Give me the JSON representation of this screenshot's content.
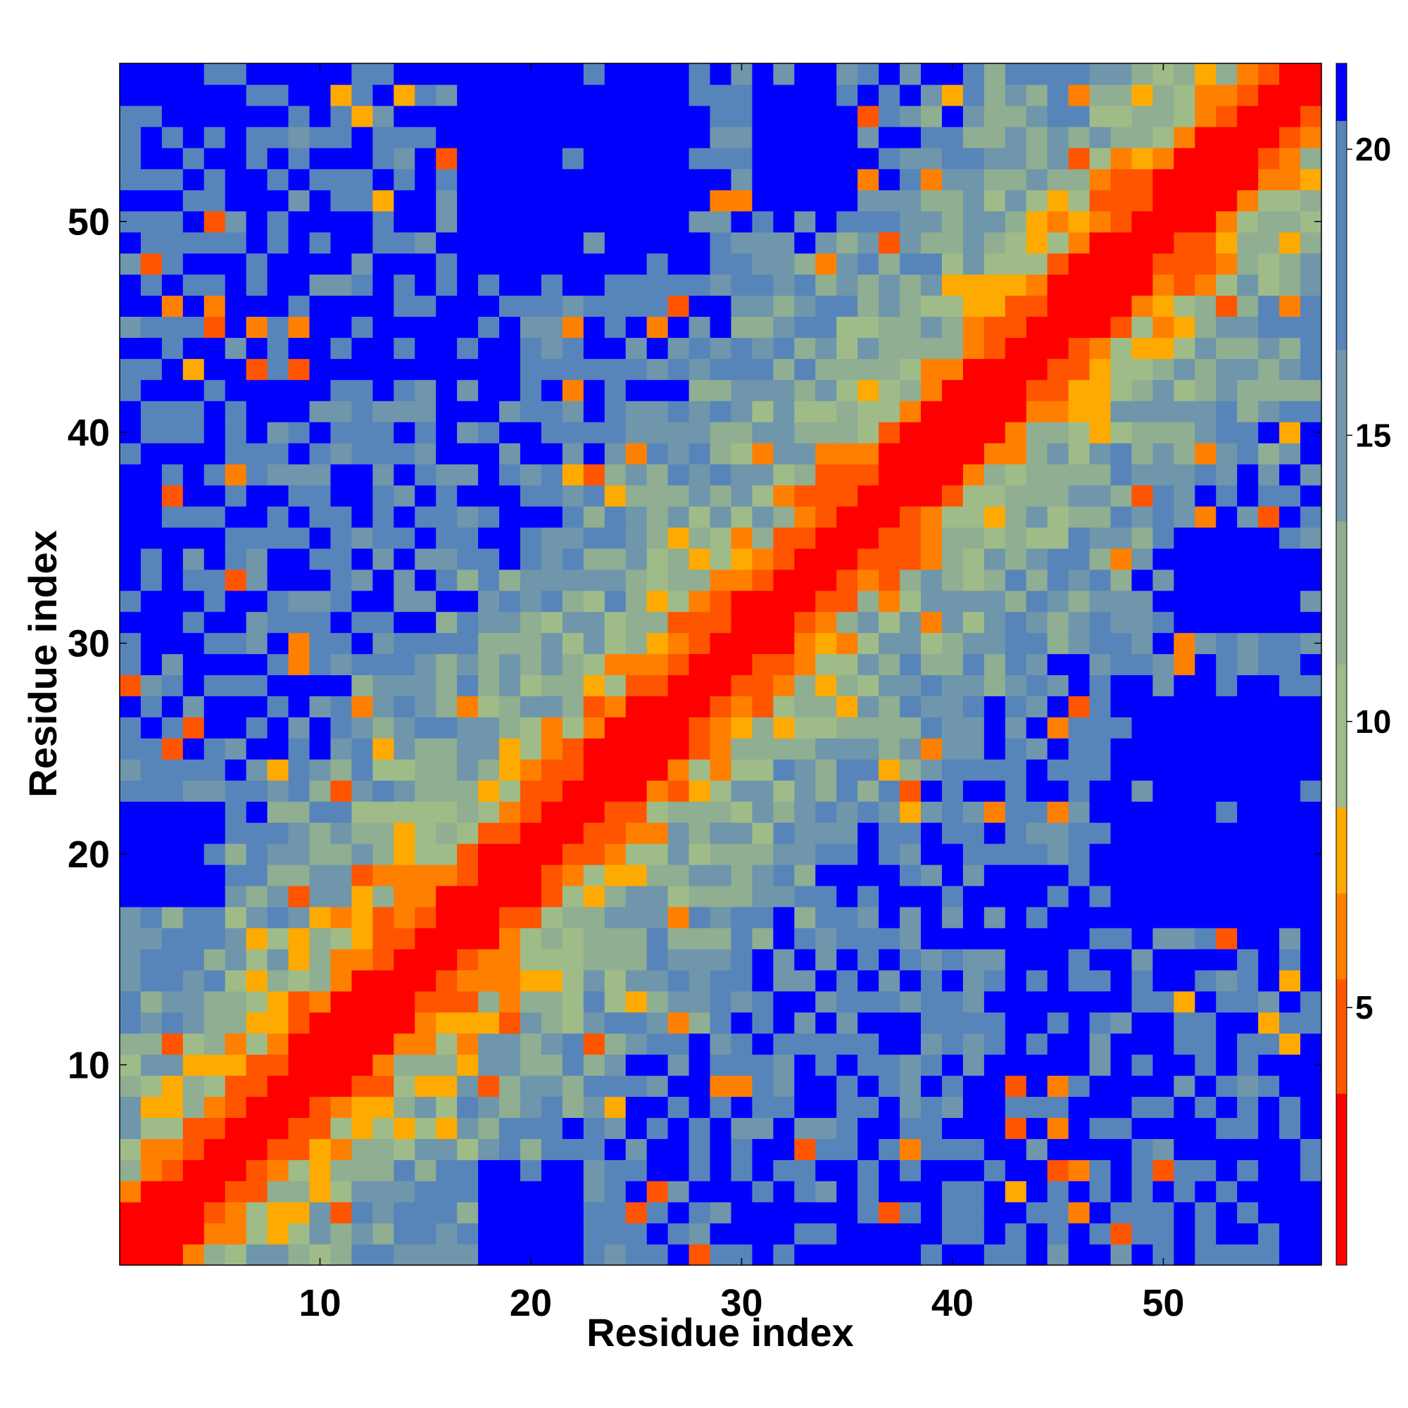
{
  "chart_data": {
    "type": "heatmap",
    "title": "",
    "xlabel": "Residue index",
    "ylabel": "Residue index",
    "n_residues": 57,
    "x_range": [
      0.5,
      57.5
    ],
    "y_range": [
      0.5,
      57.5
    ],
    "x_ticks": [
      10,
      20,
      30,
      40,
      50
    ],
    "y_ticks": [
      10,
      20,
      30,
      40,
      50
    ],
    "x_tick_labels": [
      "10",
      "20",
      "30",
      "40",
      "50"
    ],
    "y_tick_labels": [
      "10",
      "20",
      "30",
      "40",
      "50"
    ],
    "colorbar": {
      "range": [
        0.5,
        21.5
      ],
      "ticks": [
        5,
        10,
        15,
        20
      ],
      "tick_labels": [
        "5",
        "10",
        "15",
        "20"
      ],
      "levels": [
        {
          "min": 0.5,
          "max": 3.5,
          "color": "#ff0000"
        },
        {
          "min": 3.5,
          "max": 5.5,
          "color": "#ff5500"
        },
        {
          "min": 5.5,
          "max": 7.0,
          "color": "#ff8000"
        },
        {
          "min": 7.0,
          "max": 8.5,
          "color": "#ffaa00"
        },
        {
          "min": 8.5,
          "max": 11.0,
          "color": "#9fbc88"
        },
        {
          "min": 11.0,
          "max": 13.5,
          "color": "#8fae92"
        },
        {
          "min": 13.5,
          "max": 16.5,
          "color": "#6f96aa"
        },
        {
          "min": 16.5,
          "max": 20.5,
          "color": "#5885b9"
        },
        {
          "min": 20.5,
          "max": 21.5,
          "color": "#0000ff"
        }
      ]
    },
    "cell_values": "Symmetric inter-residue distance map: values rise from about 1 on the diagonal (i = j) to above 20 for residue pairs far apart; near-diagonal bands (|i-j| <= 3) are below 5."
  }
}
